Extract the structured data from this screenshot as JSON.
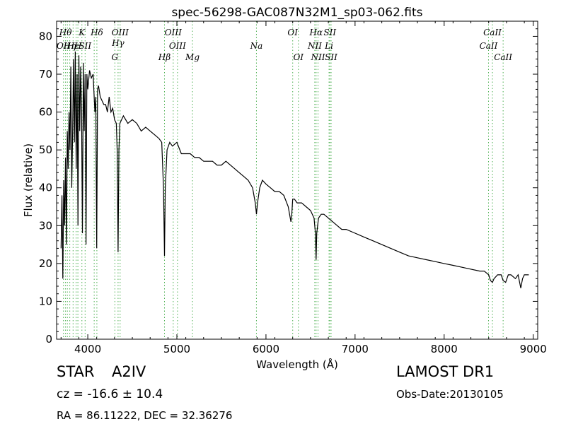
{
  "chart_data": {
    "type": "line",
    "title": "spec-56298-GAC087N32M1_sp03-062.fits",
    "xlabel": "Wavelength (Å)",
    "ylabel": "Flux (relative)",
    "xlim": [
      3650,
      9050
    ],
    "ylim": [
      0,
      84
    ],
    "xticks": [
      4000,
      5000,
      6000,
      7000,
      8000,
      9000
    ],
    "yticks": [
      0,
      10,
      20,
      30,
      40,
      50,
      60,
      70,
      80
    ],
    "xtick_labels": [
      "4000",
      "5000",
      "6000",
      "7000",
      "8000",
      "9000"
    ],
    "ytick_labels": [
      "0",
      "10",
      "20",
      "30",
      "40",
      "50",
      "60",
      "70",
      "80"
    ],
    "grid": false,
    "line_color": "#000000",
    "marker_color": "#4caf50",
    "series": [
      {
        "x": [
          3700,
          3710,
          3720,
          3730,
          3740,
          3750,
          3760,
          3770,
          3780,
          3790,
          3800,
          3810,
          3820,
          3830,
          3840,
          3850,
          3860,
          3870,
          3880,
          3890,
          3900,
          3910,
          3920,
          3930,
          3940,
          3950,
          3960,
          3970,
          3980,
          3990,
          4000,
          4020,
          4040,
          4060,
          4080,
          4090,
          4100,
          4110,
          4120,
          4140,
          4160,
          4180,
          4200,
          4220,
          4240,
          4260,
          4280,
          4300,
          4320,
          4330,
          4340,
          4350,
          4360,
          4380,
          4400,
          4450,
          4500,
          4550,
          4600,
          4650,
          4700,
          4750,
          4800,
          4830,
          4850,
          4861,
          4870,
          4890,
          4920,
          4950,
          5000,
          5050,
          5100,
          5150,
          5200,
          5250,
          5300,
          5350,
          5400,
          5450,
          5500,
          5550,
          5600,
          5650,
          5700,
          5750,
          5800,
          5850,
          5880,
          5893,
          5905,
          5930,
          5960,
          6000,
          6050,
          6100,
          6150,
          6200,
          6250,
          6280,
          6290,
          6300,
          6320,
          6350,
          6400,
          6450,
          6500,
          6540,
          6555,
          6563,
          6570,
          6590,
          6620,
          6650,
          6700,
          6750,
          6800,
          6850,
          6900,
          7000,
          7100,
          7200,
          7300,
          7400,
          7500,
          7600,
          7700,
          7800,
          7900,
          8000,
          8100,
          8200,
          8300,
          8400,
          8450,
          8500,
          8520,
          8542,
          8560,
          8600,
          8640,
          8662,
          8690,
          8720,
          8750,
          8800,
          8830,
          8860,
          8880,
          8900,
          8950
        ],
        "y": [
          24,
          38,
          16,
          42,
          30,
          48,
          25,
          55,
          45,
          60,
          50,
          72,
          40,
          55,
          74,
          52,
          76,
          45,
          70,
          30,
          75,
          55,
          72,
          60,
          28,
          73,
          55,
          70,
          25,
          70,
          66,
          71,
          69,
          70,
          60,
          64,
          24,
          66,
          67,
          64,
          63,
          62,
          62,
          60,
          64,
          60,
          61,
          58,
          57,
          50,
          23,
          50,
          57,
          58,
          59,
          57,
          58,
          57,
          55,
          56,
          55,
          54,
          53,
          52,
          40,
          22,
          40,
          50,
          52,
          51,
          52,
          49,
          49,
          49,
          48,
          48,
          47,
          47,
          47,
          46,
          46,
          47,
          46,
          45,
          44,
          43,
          42,
          40,
          36,
          33,
          36,
          40,
          42,
          41,
          40,
          39,
          39,
          38,
          35,
          31,
          33,
          37,
          37,
          36,
          36,
          35,
          34,
          32,
          28,
          21,
          28,
          32,
          33,
          33,
          32,
          31,
          30,
          29,
          29,
          28,
          27,
          26,
          25,
          24,
          23,
          22,
          21.5,
          21,
          20.5,
          20,
          19.5,
          19,
          18.5,
          18,
          18,
          17,
          15.5,
          15,
          16,
          17,
          17,
          15.5,
          15,
          17,
          17,
          16,
          17,
          13.5,
          16,
          17,
          17
        ]
      }
    ],
    "lines": [
      {
        "x": 3727,
        "label": "OII",
        "pos": "upper2"
      },
      {
        "x": 3750,
        "label": "Hθ",
        "pos": "upper1"
      },
      {
        "x": 3771,
        "label": "",
        "pos": ""
      },
      {
        "x": 3798,
        "label": "Hη",
        "pos": "upper2"
      },
      {
        "x": 3835,
        "label": "Hε",
        "pos": "upper2"
      },
      {
        "x": 3869,
        "label": "",
        "pos": ""
      },
      {
        "x": 3889,
        "label": "H",
        "pos": "upper2"
      },
      {
        "x": 3934,
        "label": "K",
        "pos": "upper1"
      },
      {
        "x": 3970,
        "label": "SII",
        "pos": "upper2"
      },
      {
        "x": 4072,
        "label": "",
        "pos": ""
      },
      {
        "x": 4102,
        "label": "Hδ",
        "pos": "upper1"
      },
      {
        "x": 4304,
        "label": "G",
        "pos": "lower1"
      },
      {
        "x": 4340,
        "label": "Hγ",
        "pos": "upper2b"
      },
      {
        "x": 4363,
        "label": "OIII",
        "pos": "upper1"
      },
      {
        "x": 4861,
        "label": "Hβ",
        "pos": "lower1"
      },
      {
        "x": 4959,
        "label": "OIII",
        "pos": "upper1"
      },
      {
        "x": 5007,
        "label": "OIII",
        "pos": "upper2"
      },
      {
        "x": 5175,
        "label": "Mg",
        "pos": "lower1"
      },
      {
        "x": 5893,
        "label": "Na",
        "pos": "upper2"
      },
      {
        "x": 6300,
        "label": "OI",
        "pos": "upper1"
      },
      {
        "x": 6364,
        "label": "OI",
        "pos": "lower1"
      },
      {
        "x": 6548,
        "label": "NII",
        "pos": "upper2"
      },
      {
        "x": 6563,
        "label": "Hα",
        "pos": "upper1"
      },
      {
        "x": 6584,
        "label": "NII",
        "pos": "lower1"
      },
      {
        "x": 6708,
        "label": "Li",
        "pos": "upper2"
      },
      {
        "x": 6717,
        "label": "SII",
        "pos": "upper1"
      },
      {
        "x": 6731,
        "label": "SII",
        "pos": "lower1"
      },
      {
        "x": 8498,
        "label": "CaII",
        "pos": "upper2"
      },
      {
        "x": 8542,
        "label": "CaII",
        "pos": "upper1"
      },
      {
        "x": 8662,
        "label": "CaII",
        "pos": "lower1"
      }
    ]
  },
  "info": {
    "object_type": "STAR",
    "subclass": "A2IV",
    "cz_line": "cz = -16.6 ± 10.4",
    "coords": "RA = 86.11222, DEC = 32.36276",
    "survey": "LAMOST DR1",
    "obs_date": "Obs-Date:20130105"
  }
}
